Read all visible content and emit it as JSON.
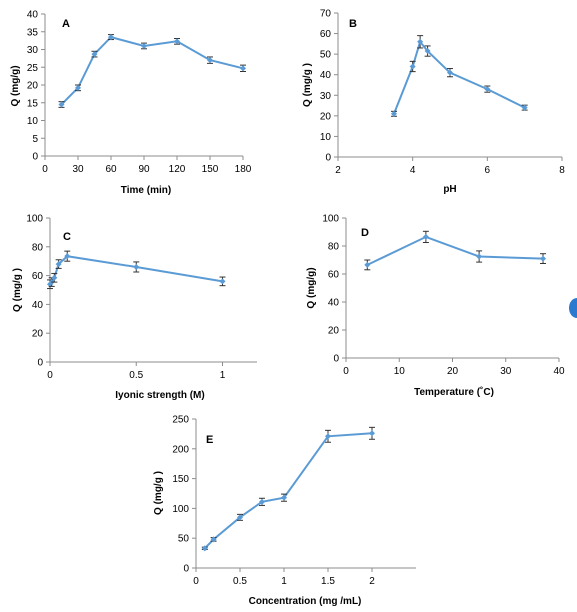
{
  "chart_data": [
    {
      "panel": "A",
      "type": "line",
      "xlabel": "Time (min)",
      "ylabel": "Q (mg/g)",
      "xlim": [
        0,
        180
      ],
      "ylim": [
        0,
        40
      ],
      "xticks": [
        0,
        30,
        60,
        90,
        120,
        150,
        180
      ],
      "xtick_labels": [
        "0",
        "30",
        "60",
        "90",
        "120",
        "150",
        "180"
      ],
      "yticks": [
        0,
        5,
        10,
        15,
        20,
        25,
        30,
        35,
        40
      ],
      "ytick_labels": [
        "0",
        "5",
        "10",
        "15",
        "20",
        "25",
        "30",
        "35",
        "40"
      ],
      "grid": false,
      "color": "#5b9bd5",
      "x": [
        15,
        30,
        45,
        60,
        90,
        120,
        150,
        180
      ],
      "y": [
        14.5,
        19.2,
        28.7,
        33.5,
        31.0,
        32.3,
        27.0,
        24.7
      ],
      "err": [
        0.8,
        0.8,
        0.8,
        0.7,
        0.8,
        0.8,
        0.9,
        0.9
      ]
    },
    {
      "panel": "B",
      "type": "line",
      "xlabel": "pH",
      "ylabel": "Q (mg/g )",
      "xlim": [
        2,
        8
      ],
      "ylim": [
        0,
        70
      ],
      "xticks": [
        2,
        4,
        6,
        8
      ],
      "xtick_labels": [
        "2",
        "4",
        "6",
        "8"
      ],
      "yticks": [
        0,
        10,
        20,
        30,
        40,
        50,
        60,
        70
      ],
      "ytick_labels": [
        "0",
        "10",
        "20",
        "30",
        "40",
        "50",
        "60",
        "70"
      ],
      "grid": false,
      "color": "#5b9bd5",
      "x": [
        3.5,
        4.0,
        4.2,
        4.4,
        5.0,
        6.0,
        7.0
      ],
      "y": [
        21,
        44,
        56,
        51.5,
        41,
        33,
        24
      ],
      "err": [
        1.2,
        2.5,
        3.0,
        2.5,
        2.0,
        1.5,
        1.2
      ]
    },
    {
      "panel": "C",
      "type": "line",
      "xlabel": "Iyonic strength (M)",
      "ylabel": "Q (mg/g )",
      "xlim": [
        0,
        1.2
      ],
      "ylim": [
        0,
        100
      ],
      "xticks": [
        0,
        0.5,
        1
      ],
      "xtick_labels": [
        "0",
        "0.5",
        "1"
      ],
      "yticks": [
        0,
        20,
        40,
        60,
        80,
        100
      ],
      "ytick_labels": [
        "0",
        "20",
        "40",
        "60",
        "80",
        "100"
      ],
      "grid": false,
      "color": "#5b9bd5",
      "x": [
        0.0,
        0.01,
        0.025,
        0.05,
        0.1,
        0.5,
        1.0
      ],
      "y": [
        54,
        55.5,
        58.5,
        68,
        73.5,
        66,
        56
      ],
      "err": [
        3,
        3,
        3,
        3,
        3.5,
        3.5,
        3
      ]
    },
    {
      "panel": "D",
      "type": "line",
      "xlabel": "Temperature (˚C)",
      "ylabel": "Q (mg/g)",
      "xlim": [
        0,
        40
      ],
      "ylim": [
        0,
        100
      ],
      "xticks": [
        0,
        10,
        20,
        30,
        40
      ],
      "xtick_labels": [
        "0",
        "10",
        "20",
        "30",
        "40"
      ],
      "yticks": [
        0,
        20,
        40,
        60,
        80,
        100
      ],
      "ytick_labels": [
        "0",
        "20",
        "40",
        "60",
        "80",
        "100"
      ],
      "grid": false,
      "color": "#5b9bd5",
      "x": [
        4,
        15,
        25,
        37
      ],
      "y": [
        66.5,
        86.5,
        72.5,
        71
      ],
      "err": [
        3.5,
        4,
        4,
        3.5
      ]
    },
    {
      "panel": "E",
      "type": "line",
      "xlabel": "Concentration  (mg /mL)",
      "ylabel": "Q (mg/g )",
      "xlim": [
        0,
        2.5
      ],
      "ylim": [
        0,
        250
      ],
      "xticks": [
        0,
        0.5,
        1,
        1.5,
        2
      ],
      "xtick_labels": [
        "0",
        "0.5",
        "1",
        "1.5",
        "2"
      ],
      "yticks": [
        0,
        50,
        100,
        150,
        200,
        250
      ],
      "ytick_labels": [
        "0",
        "50",
        "100",
        "150",
        "200",
        "250"
      ],
      "grid": false,
      "color": "#5b9bd5",
      "x": [
        0.1,
        0.2,
        0.5,
        0.75,
        1.0,
        1.5,
        2.0
      ],
      "y": [
        33,
        48,
        85,
        111,
        118,
        221,
        226
      ],
      "err": [
        2,
        3,
        5,
        6,
        6,
        10,
        10
      ]
    }
  ]
}
